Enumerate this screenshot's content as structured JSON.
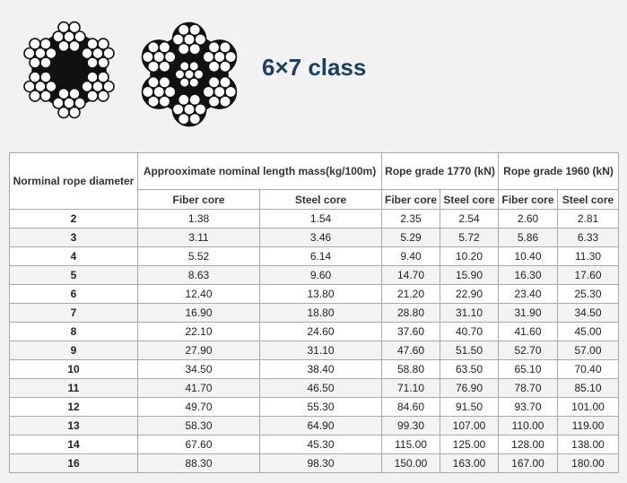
{
  "header": {
    "title": "6×7 class"
  },
  "table": {
    "header_top": [
      "Norminal rope diameter",
      "Approoximate nominal length mass(kg/100m)",
      "Rope grade 1770 (kN)",
      "Rope grade 1960 (kN)"
    ],
    "header_sub": [
      "Fiber core",
      "Steel core",
      "Fiber core",
      "Steel core",
      "Fiber core",
      "Steel core"
    ],
    "rows": [
      [
        "2",
        "1.38",
        "1.54",
        "2.35",
        "2.54",
        "2.60",
        "2.81"
      ],
      [
        "3",
        "3.11",
        "3.46",
        "5.29",
        "5.72",
        "5.86",
        "6.33"
      ],
      [
        "4",
        "5.52",
        "6.14",
        "9.40",
        "10.20",
        "10.40",
        "11.30"
      ],
      [
        "5",
        "8.63",
        "9.60",
        "14.70",
        "15.90",
        "16.30",
        "17.60"
      ],
      [
        "6",
        "12.40",
        "13.80",
        "21.20",
        "22.90",
        "23.40",
        "25.30"
      ],
      [
        "7",
        "16.90",
        "18.80",
        "28.80",
        "31.10",
        "31.90",
        "34.50"
      ],
      [
        "8",
        "22.10",
        "24.60",
        "37.60",
        "40.70",
        "41.60",
        "45.00"
      ],
      [
        "9",
        "27.90",
        "31.10",
        "47.60",
        "51.50",
        "52.70",
        "57.00"
      ],
      [
        "10",
        "34.50",
        "38.40",
        "58.80",
        "63.50",
        "65.10",
        "70.40"
      ],
      [
        "11",
        "41.70",
        "46.50",
        "71.10",
        "76.90",
        "78.70",
        "85.10"
      ],
      [
        "12",
        "49.70",
        "55.30",
        "84.60",
        "91.50",
        "93.70",
        "101.00"
      ],
      [
        "13",
        "58.30",
        "64.90",
        "99.30",
        "107.00",
        "110.00",
        "119.00"
      ],
      [
        "14",
        "67.60",
        "45.30",
        "115.00",
        "125.00",
        "128.00",
        "138.00"
      ],
      [
        "16",
        "88.30",
        "98.30",
        "150.00",
        "163.00",
        "167.00",
        "180.00"
      ]
    ]
  }
}
